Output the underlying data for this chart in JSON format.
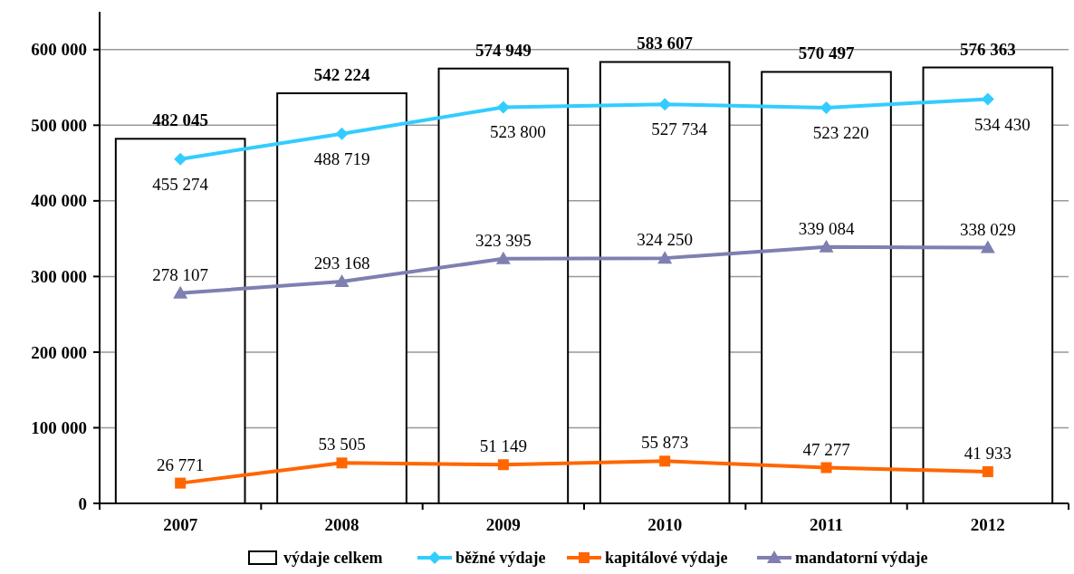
{
  "chart_data": {
    "type": "bar",
    "categories": [
      "2007",
      "2008",
      "2009",
      "2010",
      "2011",
      "2012"
    ],
    "ylim": [
      0,
      650000
    ],
    "yticks": [
      {
        "value": 0,
        "label": "0"
      },
      {
        "value": 100000,
        "label": "100 000"
      },
      {
        "value": 200000,
        "label": "200 000"
      },
      {
        "value": 300000,
        "label": "300 000"
      },
      {
        "value": 400000,
        "label": "400 000"
      },
      {
        "value": 500000,
        "label": "500 000"
      },
      {
        "value": 600000,
        "label": "600 000"
      }
    ],
    "grid": "y",
    "legend": "bottom",
    "series": [
      {
        "name": "výdaje celkem",
        "color": "#ffffff",
        "values": [
          482045,
          542224,
          574949,
          583607,
          570497,
          576363
        ],
        "value_labels": [
          "482 045",
          "542 224",
          "574 949",
          "583 607",
          "570 497",
          "576 363"
        ]
      },
      {
        "name": "běžné výdaje",
        "type": "line",
        "color": "#33ccff",
        "marker": "diamond",
        "values": [
          455274,
          488719,
          523800,
          527734,
          523220,
          534430
        ],
        "value_labels": [
          "455 274",
          "488 719",
          "523 800",
          "527 734",
          "523 220",
          "534 430"
        ]
      },
      {
        "name": "kapitálové výdaje",
        "type": "line",
        "color": "#ff6600",
        "marker": "square",
        "values": [
          26771,
          53505,
          51149,
          55873,
          47277,
          41933
        ],
        "value_labels": [
          "26 771",
          "53 505",
          "51 149",
          "55 873",
          "47 277",
          "41 933"
        ]
      },
      {
        "name": "mandatorní výdaje",
        "type": "line",
        "color": "#7f7fb2",
        "marker": "triangle",
        "values": [
          278107,
          293168,
          323395,
          324250,
          339084,
          338029
        ],
        "value_labels": [
          "278 107",
          "293 168",
          "323 395",
          "324 250",
          "339 084",
          "338 029"
        ]
      }
    ]
  }
}
